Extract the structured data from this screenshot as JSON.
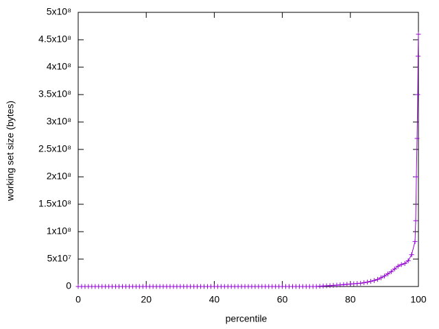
{
  "chart_data": {
    "type": "line",
    "xlabel": "percentile",
    "ylabel": "working set size (bytes)",
    "x": [
      0,
      1,
      2,
      3,
      4,
      5,
      6,
      7,
      8,
      9,
      10,
      11,
      12,
      13,
      14,
      15,
      16,
      17,
      18,
      19,
      20,
      21,
      22,
      23,
      24,
      25,
      26,
      27,
      28,
      29,
      30,
      31,
      32,
      33,
      34,
      35,
      36,
      37,
      38,
      39,
      40,
      41,
      42,
      43,
      44,
      45,
      46,
      47,
      48,
      49,
      50,
      51,
      52,
      53,
      54,
      55,
      56,
      57,
      58,
      59,
      60,
      61,
      62,
      63,
      64,
      65,
      66,
      67,
      68,
      69,
      70,
      71,
      72,
      73,
      74,
      75,
      76,
      77,
      78,
      79,
      80,
      81,
      82,
      83,
      84,
      85,
      86,
      87,
      88,
      89,
      90,
      91,
      92,
      93,
      94,
      95,
      96,
      97,
      98,
      99,
      99.2,
      99.4,
      99.6,
      99.8,
      99.9,
      100
    ],
    "values": [
      0,
      0,
      0,
      0,
      0,
      0,
      0,
      0,
      0,
      0,
      0,
      0,
      0,
      0,
      0,
      0,
      0,
      0,
      0,
      0,
      0,
      0,
      0,
      0,
      0,
      0,
      0,
      0,
      0,
      0,
      0,
      0,
      0,
      0,
      0,
      0,
      0,
      0,
      0,
      0,
      0,
      0,
      0,
      0,
      0,
      0,
      0,
      0,
      0,
      0,
      0,
      0,
      0,
      0,
      0,
      0,
      0,
      0,
      0,
      0,
      0,
      0,
      0,
      0,
      0,
      0,
      0,
      0,
      0,
      0,
      0,
      500000,
      1000000,
      1200000,
      1500000,
      2000000,
      2500000,
      3000000,
      3500000,
      4000000,
      4500000,
      5000000,
      5500000,
      6000000,
      7000000,
      8000000,
      9500000,
      11000000,
      13000000,
      16000000,
      19000000,
      23000000,
      27000000,
      32000000,
      37000000,
      40000000,
      42000000,
      47000000,
      58000000,
      82000000,
      120000000,
      200000000,
      270000000,
      350000000,
      420000000,
      460000000
    ],
    "color": "#9400d3",
    "xlim": [
      0,
      100
    ],
    "xticks": [
      0,
      20,
      40,
      60,
      80,
      100
    ],
    "ylim": [
      0,
      500000000
    ],
    "yticks": [
      0,
      {
        "value": 50000000,
        "label": "5x10⁷"
      },
      {
        "value": 100000000,
        "label": "1x10⁸"
      },
      {
        "value": 150000000,
        "label": "1.5x10⁸"
      },
      {
        "value": 200000000,
        "label": "2x10⁸"
      },
      {
        "value": 250000000,
        "label": "2.5x10⁸"
      },
      {
        "value": 300000000,
        "label": "3x10⁸"
      },
      {
        "value": 350000000,
        "label": "3.5x10⁸"
      },
      {
        "value": 400000000,
        "label": "4x10⁸"
      },
      {
        "value": 450000000,
        "label": "4.5x10⁸"
      },
      {
        "value": 500000000,
        "label": "5x10⁸"
      }
    ],
    "grid": false
  }
}
